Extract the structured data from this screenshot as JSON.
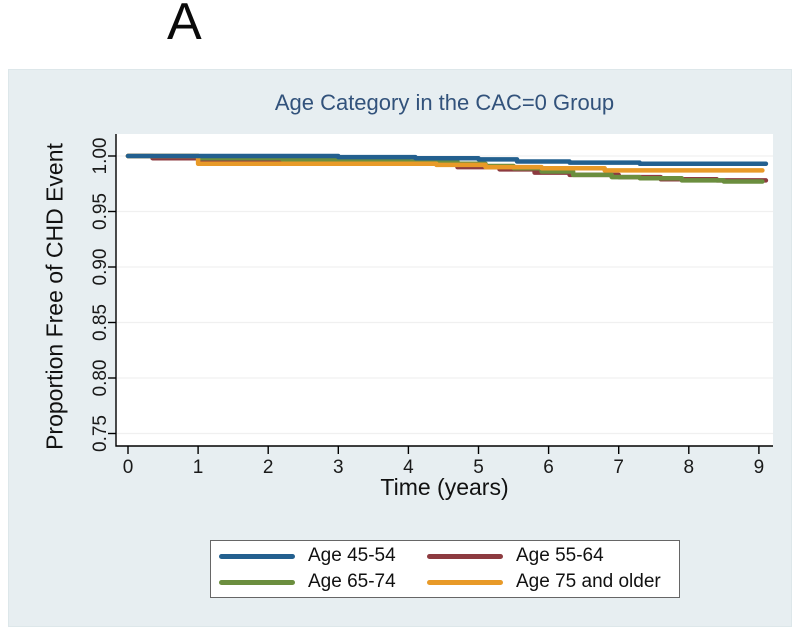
{
  "page": {
    "panel_label": "A",
    "background": "#ffffff"
  },
  "figure": {
    "background_color": "#e7eef1",
    "plot_background": "#ffffff",
    "title": "Age Category in the CAC=0 Group",
    "title_color": "#32527b",
    "x_axis_label": "Time (years)",
    "y_axis_label": "Proportion Free of CHD Event"
  },
  "chart_data": {
    "type": "line",
    "style": "kaplan-meier-step",
    "title": "Age Category in the CAC=0 Group",
    "xlabel": "Time (years)",
    "ylabel": "Proportion Free of CHD Event",
    "xlim": [
      0,
      9.1
    ],
    "ylim": [
      0.75,
      1.0
    ],
    "x_ticks": [
      0,
      1,
      2,
      3,
      4,
      5,
      6,
      7,
      8,
      9
    ],
    "y_ticks": [
      1.0,
      0.95,
      0.9,
      0.85,
      0.8,
      0.75
    ],
    "y_tick_labels": [
      "1.00",
      "0.95",
      "0.90",
      "0.85",
      "0.80",
      "0.75"
    ],
    "grid": "faint-horizontal-lines",
    "legend_position": "below",
    "series": [
      {
        "name": "Age 45-54",
        "color": "#23608f",
        "end": 9.1,
        "steps": [
          [
            0,
            1.0
          ],
          [
            3.0,
            0.999
          ],
          [
            4.1,
            0.998
          ],
          [
            5.0,
            0.997
          ],
          [
            5.55,
            0.995
          ],
          [
            6.3,
            0.994
          ],
          [
            7.3,
            0.993
          ]
        ]
      },
      {
        "name": "Age 55-64",
        "color": "#8d3b40",
        "end": 9.1,
        "steps": [
          [
            0,
            1.0
          ],
          [
            0.35,
            0.998
          ],
          [
            1.0,
            0.997
          ],
          [
            2.4,
            0.995
          ],
          [
            3.9,
            0.993
          ],
          [
            4.7,
            0.99
          ],
          [
            5.3,
            0.988
          ],
          [
            5.8,
            0.985
          ],
          [
            6.3,
            0.983
          ],
          [
            7.0,
            0.981
          ],
          [
            7.6,
            0.979
          ],
          [
            8.4,
            0.978
          ]
        ]
      },
      {
        "name": "Age 65-74",
        "color": "#6b8e3e",
        "end": 9.05,
        "steps": [
          [
            0,
            1.0
          ],
          [
            1.0,
            0.998
          ],
          [
            2.2,
            0.997
          ],
          [
            3.1,
            0.996
          ],
          [
            4.0,
            0.995
          ],
          [
            4.7,
            0.993
          ],
          [
            5.1,
            0.991
          ],
          [
            5.5,
            0.989
          ],
          [
            5.9,
            0.986
          ],
          [
            6.35,
            0.983
          ],
          [
            6.9,
            0.981
          ],
          [
            7.3,
            0.98
          ],
          [
            7.9,
            0.978
          ],
          [
            8.5,
            0.977
          ]
        ]
      },
      {
        "name": "Age 75 and older",
        "color": "#e89a28",
        "end": 9.05,
        "steps": [
          [
            0,
            1.0
          ],
          [
            1.0,
            0.993
          ],
          [
            4.4,
            0.992
          ],
          [
            5.1,
            0.99
          ],
          [
            5.9,
            0.989
          ],
          [
            6.8,
            0.987
          ]
        ]
      }
    ],
    "draw_order": [
      "Age 55-64",
      "Age 65-74",
      "Age 75 and older",
      "Age 45-54"
    ]
  },
  "legend": {
    "items": [
      {
        "label": "Age 45-54",
        "color": "#23608f"
      },
      {
        "label": "Age 55-64",
        "color": "#8d3b40"
      },
      {
        "label": "Age 65-74",
        "color": "#6b8e3e"
      },
      {
        "label": "Age 75 and older",
        "color": "#e89a28"
      }
    ]
  }
}
